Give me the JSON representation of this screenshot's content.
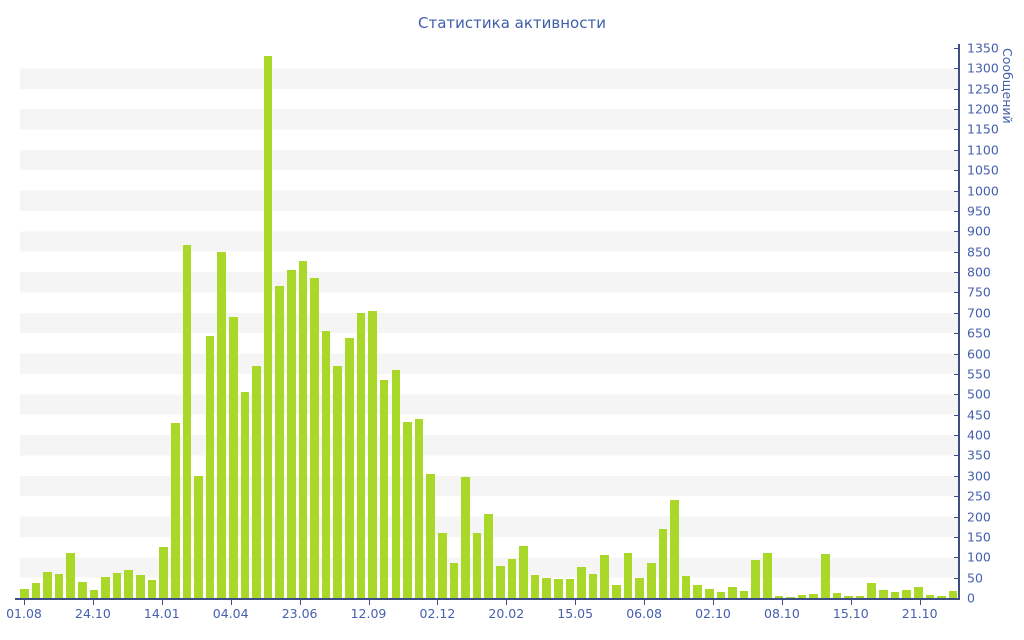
{
  "chart_data": {
    "type": "bar",
    "title": "Статистика активности",
    "ylabel": "Сообщений",
    "xlabel": "",
    "ylim": [
      0,
      1350
    ],
    "grid": "horizontal-stripes-every-50",
    "legend": "none",
    "y_axis_side": "right",
    "y_ticks": [
      0,
      50,
      100,
      150,
      200,
      250,
      300,
      350,
      400,
      450,
      500,
      550,
      600,
      650,
      700,
      750,
      800,
      850,
      900,
      950,
      1000,
      1050,
      1100,
      1150,
      1200,
      1250,
      1300,
      1350
    ],
    "x_tick_labels": [
      "01.08",
      "24.10",
      "14.01",
      "04.04",
      "23.06",
      "12.09",
      "02.12",
      "20.02",
      "15.05",
      "06.08",
      "02.10",
      "08.10",
      "15.10",
      "21.10"
    ],
    "values": [
      22,
      37,
      64,
      59,
      110,
      39,
      20,
      51,
      61,
      68,
      57,
      44,
      126,
      430,
      866,
      300,
      643,
      849,
      690,
      505,
      570,
      1330,
      767,
      805,
      826,
      785,
      656,
      569,
      637,
      699,
      705,
      535,
      560,
      433,
      439,
      304,
      159,
      85,
      298,
      160,
      206,
      79,
      95,
      128,
      56,
      50,
      47,
      46,
      75,
      59,
      106,
      33,
      111,
      49,
      85,
      169,
      241,
      54,
      33,
      21,
      14,
      27,
      18,
      94,
      111,
      5,
      3,
      8,
      11,
      108,
      13,
      5,
      6,
      38,
      20,
      14,
      19,
      27,
      7,
      4,
      16
    ],
    "colors": {
      "bar": "#a9d829",
      "title_text": "#3e5ea9",
      "tick_text": "#4660ae",
      "axis_line": "#3e4d85",
      "stripe": "#f5f5f6"
    }
  }
}
